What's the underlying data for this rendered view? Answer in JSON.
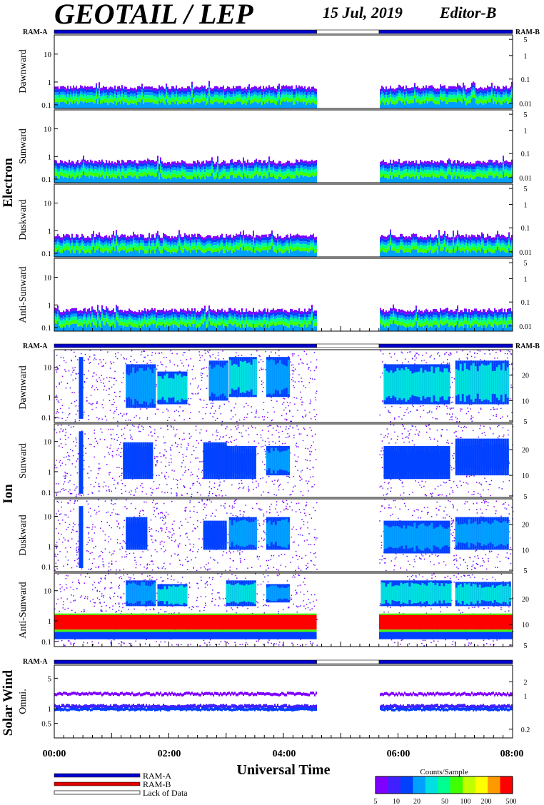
{
  "header": {
    "title": "GEOTAIL / LEP",
    "date": "15 Jul, 2019",
    "editor": "Editor-B"
  },
  "ram_labels": {
    "a": "RAM-A",
    "b": "RAM-B"
  },
  "groups": [
    {
      "name": "Electron",
      "panels": [
        "Dawnward",
        "Sunward",
        "Duskward",
        "Anti-Sunward"
      ]
    },
    {
      "name": "Ion",
      "panels": [
        "Dawnward",
        "Sunward",
        "Duskward",
        "Anti-Sunward"
      ]
    },
    {
      "name": "Solar Wind",
      "panels": [
        "Omni."
      ]
    }
  ],
  "colors": {
    "ram_a": "#0000cc",
    "ram_b": "#dd0000",
    "colormap": [
      "#8000ff",
      "#4020ff",
      "#0040ff",
      "#00a0ff",
      "#00e0e0",
      "#00ff90",
      "#40ff00",
      "#c0ff00",
      "#ffff00",
      "#ff9900",
      "#ff0000"
    ]
  },
  "legend": {
    "ram_a": "RAM-A",
    "ram_b": "RAM-B",
    "lack": "Lack of Data",
    "colorbar_title": "Counts/Sample",
    "colorbar_ticks": [
      "5",
      "10",
      "20",
      "50",
      "100",
      "200",
      "500"
    ]
  },
  "chart_data": {
    "type": "heatmap",
    "xlabel": "Universal Time",
    "x_ticks": [
      "00:00",
      "02:00",
      "04:00",
      "06:00",
      "08:00"
    ],
    "x_range_hours": [
      0,
      8
    ],
    "data_gap_hours": [
      4.58,
      5.67
    ],
    "ram_mode": [
      {
        "from": 0,
        "to": 4.58,
        "mode": "RAM-A"
      },
      {
        "from": 4.58,
        "to": 5.67,
        "mode": "Lack of Data"
      },
      {
        "from": 5.67,
        "to": 8,
        "mode": "RAM-A"
      }
    ],
    "left_axis": {
      "electron_ticks": [
        "10",
        "1",
        "0.1"
      ],
      "ion_ticks": [
        "10",
        "1",
        "0.1"
      ],
      "solar_wind_ticks": [
        "5",
        "1",
        "0.5"
      ]
    },
    "right_axis": {
      "electron_ticks": [
        "5",
        "1",
        "0.1",
        "0.01"
      ],
      "ion_ticks": [
        "20",
        "10",
        "5"
      ],
      "solar_wind_ticks": [
        "2",
        "1",
        "0.2"
      ]
    },
    "colorbar_range": [
      5,
      500
    ]
  }
}
